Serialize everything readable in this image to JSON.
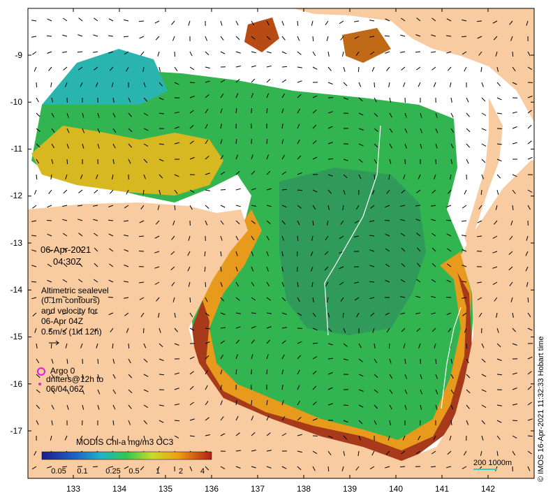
{
  "map": {
    "date": "06-Apr-2021",
    "time": "04:30Z",
    "velocity_lines": [
      "Altimetric sealevel",
      "(0.1m contours)",
      "and velocity for",
      "06-Apr 04Z",
      "0.5m/s (1kt 12h)"
    ],
    "argo_label": "Argo 0",
    "drifter_lines": [
      "drifters@12h to",
      "06/04 06Z"
    ],
    "colorbar_title": "MODIS Chl-a mg/m3 OC3",
    "colorbar_ticks": [
      "0.05",
      "0.1",
      "0.25",
      "0.5",
      "1",
      "2",
      "4"
    ],
    "scale_label": "200  1000m",
    "credit": "© IMOS 16-Apr-2021 11:32:33 Hobart time",
    "lon_ticks": [
      "133",
      "134",
      "135",
      "136",
      "137",
      "138",
      "139",
      "140",
      "141",
      "142"
    ],
    "lat_ticks": [
      "-9",
      "-10",
      "-11",
      "-12",
      "-13",
      "-14",
      "-15",
      "-16",
      "-17"
    ],
    "colors": {
      "land": "#f8cba0",
      "high_chl": "#a01e1a",
      "mid_chl": "#32b450",
      "low_chl": "#1e64c8",
      "argo": "#e01ee0",
      "scale_line": "#30d0c0"
    }
  }
}
